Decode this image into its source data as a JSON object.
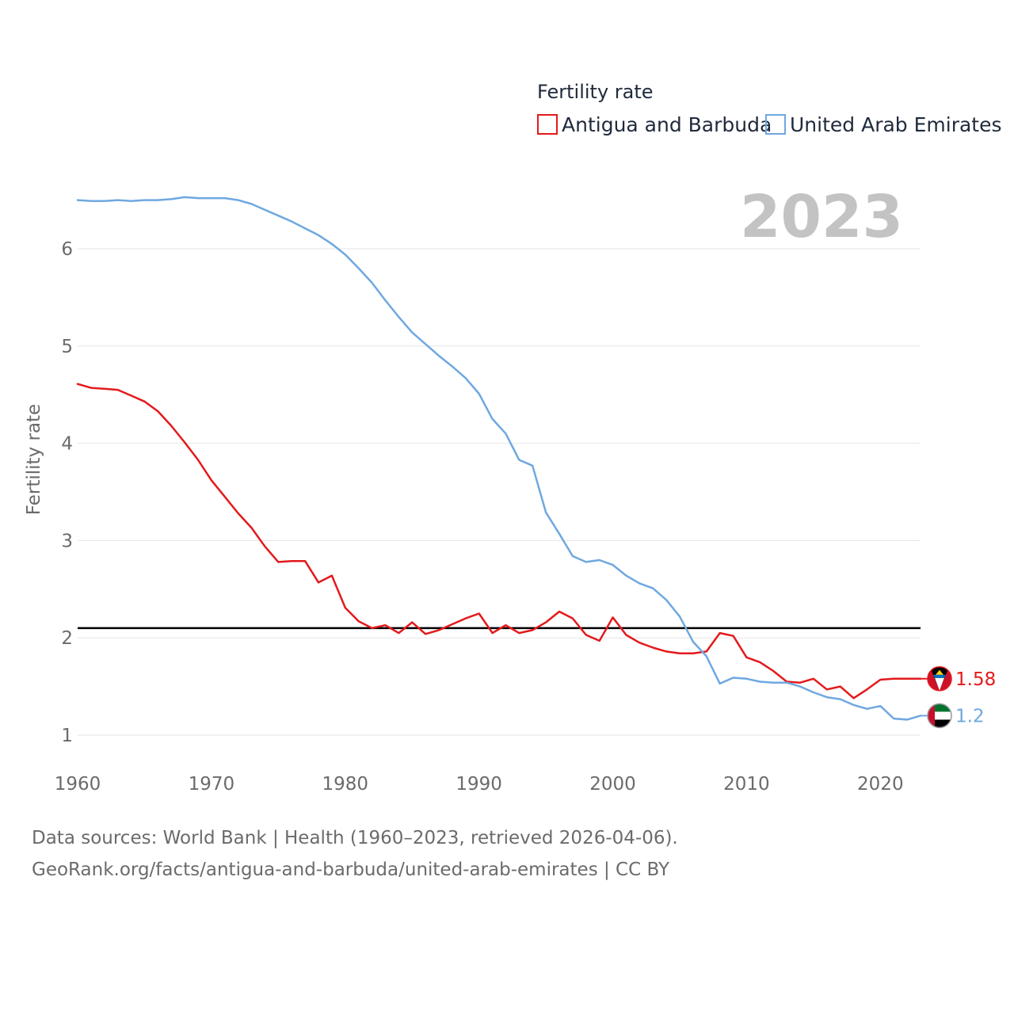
{
  "chart_data": {
    "type": "line",
    "ylabel": "Fertility rate",
    "xlabel": "",
    "xlim": [
      1960,
      2023
    ],
    "ylim": [
      1,
      6.5
    ],
    "x_ticks": [
      1960,
      1970,
      1980,
      1990,
      2000,
      2010,
      2020
    ],
    "y_ticks": [
      1,
      2,
      3,
      4,
      5,
      6
    ],
    "grid": true,
    "year_label": "2023",
    "legend": {
      "title": "Fertility rate",
      "placement": "top-right"
    },
    "reference_line": {
      "y": 2.1,
      "color": "#000000"
    },
    "series": [
      {
        "name": "Antigua and Barbuda",
        "color": "#e31a1c",
        "end_label": "1.58",
        "x": [
          1960,
          1961,
          1962,
          1963,
          1964,
          1965,
          1966,
          1967,
          1968,
          1969,
          1970,
          1971,
          1972,
          1973,
          1974,
          1975,
          1976,
          1977,
          1978,
          1979,
          1980,
          1981,
          1982,
          1983,
          1984,
          1985,
          1986,
          1987,
          1988,
          1989,
          1990,
          1991,
          1992,
          1993,
          1994,
          1995,
          1996,
          1997,
          1998,
          1999,
          2000,
          2001,
          2002,
          2003,
          2004,
          2005,
          2006,
          2007,
          2008,
          2009,
          2010,
          2011,
          2012,
          2013,
          2014,
          2015,
          2016,
          2017,
          2018,
          2019,
          2020,
          2021,
          2022,
          2023
        ],
        "values": [
          4.61,
          4.57,
          4.56,
          4.55,
          4.49,
          4.43,
          4.33,
          4.18,
          4.01,
          3.83,
          3.62,
          3.45,
          3.28,
          3.13,
          2.94,
          2.78,
          2.79,
          2.79,
          2.57,
          2.64,
          2.31,
          2.17,
          2.1,
          2.13,
          2.05,
          2.16,
          2.04,
          2.08,
          2.14,
          2.2,
          2.25,
          2.05,
          2.13,
          2.05,
          2.08,
          2.16,
          2.27,
          2.2,
          2.03,
          1.97,
          2.21,
          2.03,
          1.95,
          1.9,
          1.86,
          1.84,
          1.84,
          1.86,
          2.05,
          2.02,
          1.8,
          1.75,
          1.66,
          1.55,
          1.54,
          1.58,
          1.47,
          1.5,
          1.38,
          1.47,
          1.57,
          1.58,
          1.58,
          1.58
        ]
      },
      {
        "name": "United Arab Emirates",
        "color": "#6fa8e0",
        "end_label": "1.2",
        "x": [
          1960,
          1961,
          1962,
          1963,
          1964,
          1965,
          1966,
          1967,
          1968,
          1969,
          1970,
          1971,
          1972,
          1973,
          1974,
          1975,
          1976,
          1977,
          1978,
          1979,
          1980,
          1981,
          1982,
          1983,
          1984,
          1985,
          1986,
          1987,
          1988,
          1989,
          1990,
          1991,
          1992,
          1993,
          1994,
          1995,
          1996,
          1997,
          1998,
          1999,
          2000,
          2001,
          2002,
          2003,
          2004,
          2005,
          2006,
          2007,
          2008,
          2009,
          2010,
          2011,
          2012,
          2013,
          2014,
          2015,
          2016,
          2017,
          2018,
          2019,
          2020,
          2021,
          2022,
          2023
        ],
        "values": [
          6.5,
          6.49,
          6.49,
          6.5,
          6.49,
          6.5,
          6.5,
          6.51,
          6.53,
          6.52,
          6.52,
          6.52,
          6.5,
          6.46,
          6.4,
          6.34,
          6.28,
          6.21,
          6.14,
          6.05,
          5.94,
          5.8,
          5.65,
          5.47,
          5.3,
          5.14,
          5.02,
          4.9,
          4.79,
          4.67,
          4.51,
          4.25,
          4.1,
          3.83,
          3.77,
          3.29,
          3.07,
          2.84,
          2.78,
          2.8,
          2.75,
          2.64,
          2.56,
          2.51,
          2.39,
          2.22,
          1.96,
          1.81,
          1.53,
          1.59,
          1.58,
          1.55,
          1.54,
          1.54,
          1.5,
          1.44,
          1.39,
          1.37,
          1.31,
          1.27,
          1.3,
          1.17,
          1.16,
          1.2
        ]
      }
    ]
  },
  "source": {
    "line1": "Data sources: World Bank | Health (1960–2023, retrieved 2026-04-06).",
    "line2": "GeoRank.org/facts/antigua-and-barbuda/united-arab-emirates | CC BY"
  }
}
